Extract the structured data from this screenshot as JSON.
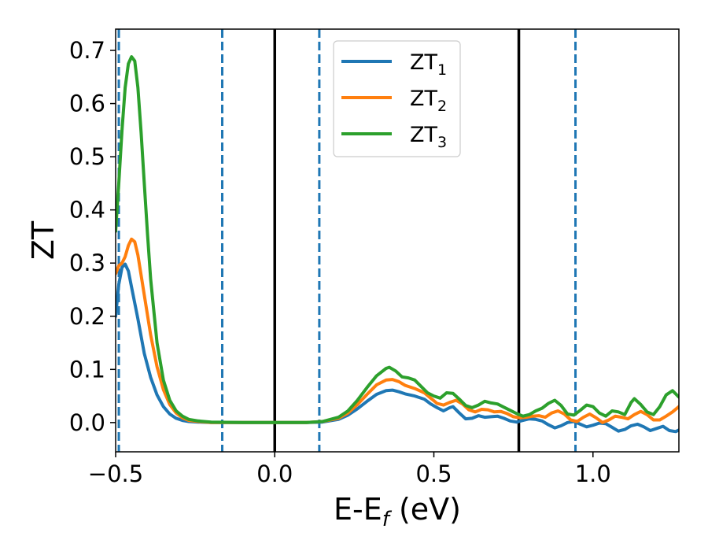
{
  "chart_data": {
    "type": "line",
    "title": "",
    "xlabel": {
      "main": "E-E",
      "sub": "f",
      "suffix": " (eV)"
    },
    "ylabel": "ZT",
    "xlim": [
      -0.5,
      1.27
    ],
    "ylim": [
      -0.055,
      0.74
    ],
    "x_ticks": [
      {
        "value": -0.5,
        "label": "−0.5"
      },
      {
        "value": 0.0,
        "label": "0.0"
      },
      {
        "value": 0.5,
        "label": "0.5"
      },
      {
        "value": 1.0,
        "label": "1.0"
      }
    ],
    "y_ticks": [
      {
        "value": 0.0,
        "label": "0.0"
      },
      {
        "value": 0.1,
        "label": "0.1"
      },
      {
        "value": 0.2,
        "label": "0.2"
      },
      {
        "value": 0.3,
        "label": "0.3"
      },
      {
        "value": 0.4,
        "label": "0.4"
      },
      {
        "value": 0.5,
        "label": "0.5"
      },
      {
        "value": 0.6,
        "label": "0.6"
      },
      {
        "value": 0.7,
        "label": "0.7"
      }
    ],
    "grid": false,
    "legend": {
      "position": "top-center"
    },
    "vertical_lines": [
      {
        "x": -0.49,
        "style": "dashed",
        "color": "#1f77b4"
      },
      {
        "x": -0.165,
        "style": "dashed",
        "color": "#1f77b4"
      },
      {
        "x": 0.0,
        "style": "solid",
        "color": "#000000"
      },
      {
        "x": 0.14,
        "style": "dashed",
        "color": "#1f77b4"
      },
      {
        "x": 0.767,
        "style": "solid",
        "color": "#000000"
      },
      {
        "x": 0.945,
        "style": "dashed",
        "color": "#1f77b4"
      }
    ],
    "series": [
      {
        "name": "ZT",
        "sub": "1",
        "color": "#1f77b4",
        "points": [
          [
            -0.5,
            0.2
          ],
          [
            -0.49,
            0.26
          ],
          [
            -0.48,
            0.292
          ],
          [
            -0.47,
            0.298
          ],
          [
            -0.46,
            0.285
          ],
          [
            -0.45,
            0.255
          ],
          [
            -0.43,
            0.195
          ],
          [
            -0.41,
            0.13
          ],
          [
            -0.39,
            0.085
          ],
          [
            -0.37,
            0.052
          ],
          [
            -0.35,
            0.03
          ],
          [
            -0.33,
            0.016
          ],
          [
            -0.31,
            0.008
          ],
          [
            -0.29,
            0.004
          ],
          [
            -0.27,
            0.002
          ],
          [
            -0.24,
            0.001
          ],
          [
            -0.2,
            0.0
          ],
          [
            -0.1,
            0.0
          ],
          [
            0.0,
            0.0
          ],
          [
            0.1,
            0.0
          ],
          [
            0.15,
            0.001
          ],
          [
            0.2,
            0.006
          ],
          [
            0.23,
            0.014
          ],
          [
            0.26,
            0.026
          ],
          [
            0.29,
            0.04
          ],
          [
            0.32,
            0.053
          ],
          [
            0.35,
            0.06
          ],
          [
            0.37,
            0.061
          ],
          [
            0.39,
            0.058
          ],
          [
            0.41,
            0.054
          ],
          [
            0.44,
            0.05
          ],
          [
            0.47,
            0.044
          ],
          [
            0.49,
            0.035
          ],
          [
            0.51,
            0.028
          ],
          [
            0.53,
            0.022
          ],
          [
            0.55,
            0.028
          ],
          [
            0.56,
            0.03
          ],
          [
            0.58,
            0.018
          ],
          [
            0.6,
            0.007
          ],
          [
            0.62,
            0.008
          ],
          [
            0.64,
            0.013
          ],
          [
            0.66,
            0.01
          ],
          [
            0.68,
            0.011
          ],
          [
            0.7,
            0.012
          ],
          [
            0.72,
            0.008
          ],
          [
            0.74,
            0.003
          ],
          [
            0.76,
            0.001
          ],
          [
            0.78,
            0.004
          ],
          [
            0.8,
            0.007
          ],
          [
            0.82,
            0.006
          ],
          [
            0.84,
            0.003
          ],
          [
            0.86,
            -0.004
          ],
          [
            0.88,
            -0.01
          ],
          [
            0.9,
            -0.006
          ],
          [
            0.92,
            0.0
          ],
          [
            0.94,
            0.002
          ],
          [
            0.96,
            -0.003
          ],
          [
            0.98,
            -0.008
          ],
          [
            1.0,
            -0.005
          ],
          [
            1.02,
            -0.001
          ],
          [
            1.04,
            -0.002
          ],
          [
            1.06,
            -0.009
          ],
          [
            1.08,
            -0.016
          ],
          [
            1.1,
            -0.013
          ],
          [
            1.12,
            -0.006
          ],
          [
            1.14,
            -0.003
          ],
          [
            1.16,
            -0.008
          ],
          [
            1.18,
            -0.015
          ],
          [
            1.2,
            -0.011
          ],
          [
            1.22,
            -0.007
          ],
          [
            1.24,
            -0.015
          ],
          [
            1.26,
            -0.017
          ],
          [
            1.27,
            -0.014
          ]
        ]
      },
      {
        "name": "ZT",
        "sub": "2",
        "color": "#ff7f0e",
        "points": [
          [
            -0.5,
            0.28
          ],
          [
            -0.49,
            0.295
          ],
          [
            -0.48,
            0.3
          ],
          [
            -0.47,
            0.312
          ],
          [
            -0.46,
            0.333
          ],
          [
            -0.45,
            0.345
          ],
          [
            -0.44,
            0.34
          ],
          [
            -0.43,
            0.315
          ],
          [
            -0.41,
            0.24
          ],
          [
            -0.39,
            0.165
          ],
          [
            -0.37,
            0.105
          ],
          [
            -0.35,
            0.062
          ],
          [
            -0.33,
            0.034
          ],
          [
            -0.31,
            0.018
          ],
          [
            -0.29,
            0.009
          ],
          [
            -0.27,
            0.004
          ],
          [
            -0.24,
            0.002
          ],
          [
            -0.2,
            0.0
          ],
          [
            -0.1,
            0.0
          ],
          [
            0.0,
            0.0
          ],
          [
            0.1,
            0.0
          ],
          [
            0.15,
            0.002
          ],
          [
            0.2,
            0.008
          ],
          [
            0.23,
            0.018
          ],
          [
            0.26,
            0.034
          ],
          [
            0.29,
            0.053
          ],
          [
            0.32,
            0.071
          ],
          [
            0.35,
            0.08
          ],
          [
            0.37,
            0.081
          ],
          [
            0.39,
            0.077
          ],
          [
            0.41,
            0.07
          ],
          [
            0.44,
            0.064
          ],
          [
            0.47,
            0.056
          ],
          [
            0.49,
            0.046
          ],
          [
            0.51,
            0.036
          ],
          [
            0.53,
            0.033
          ],
          [
            0.55,
            0.038
          ],
          [
            0.57,
            0.042
          ],
          [
            0.59,
            0.035
          ],
          [
            0.61,
            0.024
          ],
          [
            0.63,
            0.02
          ],
          [
            0.65,
            0.025
          ],
          [
            0.67,
            0.024
          ],
          [
            0.69,
            0.02
          ],
          [
            0.71,
            0.021
          ],
          [
            0.73,
            0.017
          ],
          [
            0.75,
            0.011
          ],
          [
            0.77,
            0.009
          ],
          [
            0.79,
            0.01
          ],
          [
            0.81,
            0.012
          ],
          [
            0.83,
            0.013
          ],
          [
            0.85,
            0.01
          ],
          [
            0.87,
            0.018
          ],
          [
            0.89,
            0.022
          ],
          [
            0.91,
            0.016
          ],
          [
            0.93,
            0.005
          ],
          [
            0.95,
            0.002
          ],
          [
            0.97,
            0.01
          ],
          [
            0.99,
            0.016
          ],
          [
            1.01,
            0.009
          ],
          [
            1.03,
            0.0
          ],
          [
            1.05,
            0.005
          ],
          [
            1.07,
            0.012
          ],
          [
            1.09,
            0.01
          ],
          [
            1.11,
            0.007
          ],
          [
            1.13,
            0.015
          ],
          [
            1.15,
            0.021
          ],
          [
            1.17,
            0.015
          ],
          [
            1.19,
            0.005
          ],
          [
            1.21,
            0.005
          ],
          [
            1.23,
            0.012
          ],
          [
            1.25,
            0.02
          ],
          [
            1.27,
            0.03
          ]
        ]
      },
      {
        "name": "ZT",
        "sub": "3",
        "color": "#2ca02c",
        "points": [
          [
            -0.5,
            0.36
          ],
          [
            -0.49,
            0.45
          ],
          [
            -0.48,
            0.55
          ],
          [
            -0.47,
            0.63
          ],
          [
            -0.46,
            0.675
          ],
          [
            -0.45,
            0.688
          ],
          [
            -0.44,
            0.68
          ],
          [
            -0.43,
            0.63
          ],
          [
            -0.42,
            0.545
          ],
          [
            -0.41,
            0.45
          ],
          [
            -0.4,
            0.355
          ],
          [
            -0.39,
            0.27
          ],
          [
            -0.37,
            0.15
          ],
          [
            -0.35,
            0.08
          ],
          [
            -0.33,
            0.042
          ],
          [
            -0.31,
            0.022
          ],
          [
            -0.29,
            0.012
          ],
          [
            -0.27,
            0.006
          ],
          [
            -0.24,
            0.003
          ],
          [
            -0.2,
            0.001
          ],
          [
            -0.1,
            0.0
          ],
          [
            0.0,
            0.0
          ],
          [
            0.1,
            0.0
          ],
          [
            0.15,
            0.002
          ],
          [
            0.2,
            0.01
          ],
          [
            0.23,
            0.022
          ],
          [
            0.26,
            0.042
          ],
          [
            0.29,
            0.066
          ],
          [
            0.32,
            0.088
          ],
          [
            0.35,
            0.102
          ],
          [
            0.36,
            0.104
          ],
          [
            0.38,
            0.097
          ],
          [
            0.4,
            0.086
          ],
          [
            0.42,
            0.084
          ],
          [
            0.44,
            0.08
          ],
          [
            0.46,
            0.068
          ],
          [
            0.48,
            0.056
          ],
          [
            0.5,
            0.05
          ],
          [
            0.52,
            0.046
          ],
          [
            0.54,
            0.056
          ],
          [
            0.56,
            0.055
          ],
          [
            0.58,
            0.044
          ],
          [
            0.6,
            0.032
          ],
          [
            0.62,
            0.028
          ],
          [
            0.64,
            0.033
          ],
          [
            0.66,
            0.04
          ],
          [
            0.68,
            0.037
          ],
          [
            0.7,
            0.035
          ],
          [
            0.72,
            0.029
          ],
          [
            0.74,
            0.023
          ],
          [
            0.76,
            0.017
          ],
          [
            0.78,
            0.012
          ],
          [
            0.8,
            0.015
          ],
          [
            0.82,
            0.022
          ],
          [
            0.84,
            0.027
          ],
          [
            0.86,
            0.036
          ],
          [
            0.88,
            0.042
          ],
          [
            0.9,
            0.032
          ],
          [
            0.92,
            0.016
          ],
          [
            0.94,
            0.014
          ],
          [
            0.96,
            0.023
          ],
          [
            0.98,
            0.033
          ],
          [
            1.0,
            0.03
          ],
          [
            1.02,
            0.018
          ],
          [
            1.04,
            0.012
          ],
          [
            1.06,
            0.022
          ],
          [
            1.08,
            0.02
          ],
          [
            1.1,
            0.015
          ],
          [
            1.12,
            0.038
          ],
          [
            1.13,
            0.045
          ],
          [
            1.15,
            0.034
          ],
          [
            1.17,
            0.02
          ],
          [
            1.19,
            0.015
          ],
          [
            1.21,
            0.03
          ],
          [
            1.23,
            0.052
          ],
          [
            1.25,
            0.06
          ],
          [
            1.27,
            0.048
          ]
        ]
      }
    ]
  }
}
